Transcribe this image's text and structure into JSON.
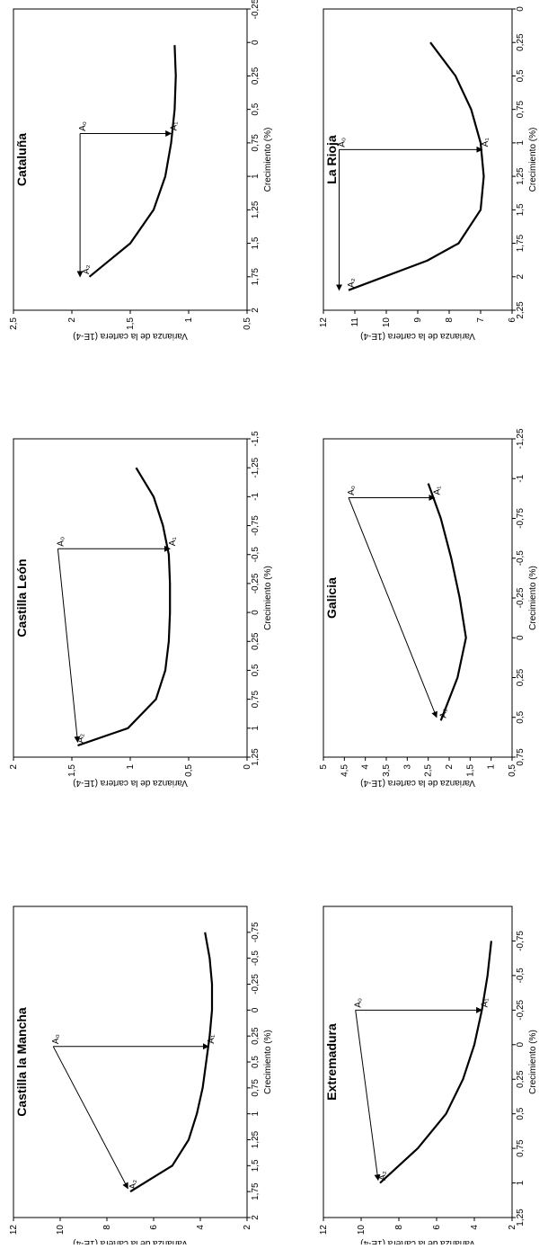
{
  "chart_data": [
    {
      "type": "line",
      "title": "Cataluña",
      "xlabel": "Crecimiento (%)",
      "ylabel": "Varianza de la cartera (1E-4)",
      "xlim": [
        -0.25,
        2
      ],
      "ylim": [
        0.5,
        2.5
      ],
      "xticks": [
        -0.25,
        0,
        0.25,
        0.5,
        0.75,
        1,
        1.25,
        1.5,
        1.75,
        2
      ],
      "xtick_labels": [
        "-0,25",
        "0",
        "0,25",
        "0,5",
        "0,75",
        "1",
        "1,25",
        "1,5",
        "1,75",
        "2"
      ],
      "yticks": [
        0.5,
        1,
        1.5,
        2,
        2.5
      ],
      "ytick_labels": [
        "0,5",
        "1",
        "1,5",
        "2",
        "2,5"
      ],
      "grid": false,
      "series": [
        {
          "x": [
            0.02,
            0.25,
            0.5,
            0.75,
            1.0,
            1.25,
            1.5,
            1.75
          ],
          "y": [
            1.12,
            1.11,
            1.12,
            1.15,
            1.2,
            1.3,
            1.5,
            1.85
          ]
        }
      ],
      "annotations": [
        {
          "label": "A₀",
          "x": 0.68,
          "y": 1.93
        },
        {
          "label": "A₁",
          "x": 0.68,
          "y": 1.15
        },
        {
          "label": "A₂",
          "x": 1.75,
          "y": 1.9
        }
      ],
      "arrows": [
        {
          "from": [
            0.68,
            1.93
          ],
          "to": [
            0.68,
            1.15
          ]
        },
        {
          "from": [
            0.68,
            1.93
          ],
          "to": [
            1.75,
            1.93
          ]
        }
      ]
    },
    {
      "type": "line",
      "title": "Castilla León",
      "xlabel": "Crecimiento (%)",
      "ylabel": "Varianza de la cartera (1E-4)",
      "xlim": [
        -1.5,
        1.25
      ],
      "ylim": [
        0,
        2
      ],
      "xticks": [
        -1.5,
        -1.25,
        -1,
        -0.75,
        -0.5,
        -0.25,
        0,
        0.25,
        0.5,
        0.75,
        1,
        1.25
      ],
      "xtick_labels": [
        "-1,5",
        "-1,25",
        "-1",
        "-0,75",
        "-0,5",
        "-0,25",
        "0",
        "0,25",
        "0,5",
        "0,75",
        "1",
        "1,25"
      ],
      "yticks": [
        0,
        0.5,
        1,
        1.5,
        2
      ],
      "ytick_labels": [
        "0",
        "0,5",
        "1",
        "1,5",
        "2"
      ],
      "grid": false,
      "series": [
        {
          "x": [
            -1.25,
            -1.0,
            -0.75,
            -0.5,
            -0.25,
            0,
            0.25,
            0.5,
            0.75,
            1.0,
            1.15
          ],
          "y": [
            0.95,
            0.8,
            0.72,
            0.67,
            0.66,
            0.66,
            0.67,
            0.7,
            0.78,
            1.02,
            1.45
          ]
        }
      ],
      "annotations": [
        {
          "label": "A₀",
          "x": -0.55,
          "y": 1.62
        },
        {
          "label": "A₁",
          "x": -0.55,
          "y": 0.66
        },
        {
          "label": "A₂",
          "x": 1.15,
          "y": 1.45
        }
      ],
      "arrows": [
        {
          "from": [
            -0.55,
            1.62
          ],
          "to": [
            -0.55,
            0.66
          ]
        },
        {
          "from": [
            -0.55,
            1.62
          ],
          "to": [
            1.12,
            1.45
          ]
        }
      ]
    },
    {
      "type": "line",
      "title": "Castilla la Mancha",
      "xlabel": "Crecimiento (%)",
      "ylabel": "Varianza de la cartera (1E-4)",
      "xlim": [
        -1.0,
        2.0
      ],
      "ylim": [
        2,
        12
      ],
      "xticks": [
        -0.75,
        -0.5,
        -0.25,
        0,
        0.25,
        0.5,
        0.75,
        1,
        1.25,
        1.5,
        1.75,
        2
      ],
      "xtick_labels": [
        "-0,75",
        "-0,5",
        "-0,25",
        "0",
        "0,25",
        "0,5",
        "0,75",
        "1",
        "1,25",
        "1,5",
        "1,75",
        "2"
      ],
      "yticks": [
        2,
        4,
        6,
        8,
        10,
        12
      ],
      "ytick_labels": [
        "2",
        "4",
        "6",
        "8",
        "10",
        "12"
      ],
      "grid": false,
      "series": [
        {
          "x": [
            -0.75,
            -0.5,
            -0.25,
            0,
            0.25,
            0.5,
            0.75,
            1.0,
            1.25,
            1.5,
            1.75
          ],
          "y": [
            3.8,
            3.6,
            3.5,
            3.5,
            3.6,
            3.75,
            3.9,
            4.15,
            4.5,
            5.2,
            7.0
          ]
        }
      ],
      "annotations": [
        {
          "label": "A₀",
          "x": 0.35,
          "y": 10.3
        },
        {
          "label": "A₁",
          "x": 0.35,
          "y": 3.65
        },
        {
          "label": "A₂",
          "x": 1.75,
          "y": 7.0
        }
      ],
      "arrows": [
        {
          "from": [
            0.35,
            10.3
          ],
          "to": [
            0.35,
            3.65
          ]
        },
        {
          "from": [
            0.35,
            10.3
          ],
          "to": [
            1.72,
            7.1
          ]
        }
      ]
    },
    {
      "type": "line",
      "title": "La Rioja",
      "xlabel": "Crecimiento (%)",
      "ylabel": "Varianza de la cartera (1E-4)",
      "xlim": [
        0,
        2.25
      ],
      "ylim": [
        6,
        12
      ],
      "xticks": [
        0,
        0.25,
        0.5,
        0.75,
        1,
        1.25,
        1.5,
        1.75,
        2,
        2.25
      ],
      "xtick_labels": [
        "0",
        "0,25",
        "0,5",
        "0,75",
        "1",
        "1,25",
        "1,5",
        "1,75",
        "2",
        "2,25"
      ],
      "yticks": [
        6,
        7,
        8,
        9,
        10,
        11,
        12
      ],
      "ytick_labels": [
        "6",
        "7",
        "8",
        "9",
        "10",
        "11",
        "12"
      ],
      "grid": false,
      "series": [
        {
          "x": [
            0.25,
            0.5,
            0.75,
            1.0,
            1.25,
            1.5,
            1.75,
            1.88,
            2.1
          ],
          "y": [
            8.6,
            7.8,
            7.3,
            7.0,
            6.9,
            7.0,
            7.7,
            8.7,
            11.2
          ]
        }
      ],
      "annotations": [
        {
          "label": "A₀",
          "x": 1.05,
          "y": 11.5
        },
        {
          "label": "A₁",
          "x": 1.05,
          "y": 6.95
        },
        {
          "label": "A₂",
          "x": 2.1,
          "y": 11.2
        }
      ],
      "arrows": [
        {
          "from": [
            1.05,
            11.5
          ],
          "to": [
            1.05,
            6.95
          ]
        },
        {
          "from": [
            1.05,
            11.5
          ],
          "to": [
            2.1,
            11.5
          ]
        }
      ]
    },
    {
      "type": "line",
      "title": "Galicia",
      "xlabel": "Crecimiento (%)",
      "ylabel": "Varianza de la cartera (1E-4)",
      "xlim": [
        -1.25,
        0.75
      ],
      "ylim": [
        0.5,
        5
      ],
      "xticks": [
        -1.25,
        -1,
        -0.75,
        -0.5,
        -0.25,
        0,
        0.25,
        0.5,
        0.75
      ],
      "xtick_labels": [
        "-1,25",
        "-1",
        "-0,75",
        "-0,5",
        "-0,25",
        "0",
        "0,25",
        "0,5",
        "0,75"
      ],
      "yticks": [
        0.5,
        1,
        1.5,
        2,
        2.5,
        3,
        3.5,
        4,
        4.5,
        5
      ],
      "ytick_labels": [
        "0,5",
        "1",
        "1,5",
        "2",
        "2,5",
        "3",
        "3,5",
        "4",
        "4,5",
        "5"
      ],
      "grid": false,
      "series": [
        {
          "x": [
            -0.97,
            -0.75,
            -0.5,
            -0.25,
            0,
            0.25,
            0.52
          ],
          "y": [
            2.5,
            2.2,
            1.95,
            1.75,
            1.6,
            1.8,
            2.2
          ]
        }
      ],
      "annotations": [
        {
          "label": "A₀",
          "x": -0.88,
          "y": 4.4
        },
        {
          "label": "A₁",
          "x": -0.88,
          "y": 2.35
        },
        {
          "label": "A₂",
          "x": 0.52,
          "y": 2.2
        }
      ],
      "arrows": [
        {
          "from": [
            -0.88,
            4.4
          ],
          "to": [
            -0.88,
            2.35
          ]
        },
        {
          "from": [
            -0.88,
            4.4
          ],
          "to": [
            0.5,
            2.3
          ]
        }
      ]
    },
    {
      "type": "line",
      "title": "Extremadura",
      "xlabel": "Crecimiento (%)",
      "ylabel": "Varianza de la cartera (1E-4)",
      "xlim": [
        -1.0,
        1.25
      ],
      "ylim": [
        2,
        12
      ],
      "xticks": [
        -0.75,
        -0.5,
        -0.25,
        0,
        0.25,
        0.5,
        0.75,
        1,
        1.25
      ],
      "xtick_labels": [
        "-0,75",
        "-0,5",
        "-0,25",
        "0",
        "0,25",
        "0,5",
        "0,75",
        "1",
        "1,25"
      ],
      "yticks": [
        2,
        4,
        6,
        8,
        10,
        12
      ],
      "ytick_labels": [
        "2",
        "4",
        "6",
        "8",
        "10",
        "12"
      ],
      "grid": false,
      "series": [
        {
          "x": [
            -0.75,
            -0.5,
            -0.25,
            0,
            0.25,
            0.5,
            0.75,
            1.0
          ],
          "y": [
            3.1,
            3.3,
            3.6,
            4.0,
            4.6,
            5.5,
            7.0,
            9.0
          ]
        }
      ],
      "annotations": [
        {
          "label": "A₀",
          "x": -0.25,
          "y": 10.3
        },
        {
          "label": "A₁",
          "x": -0.25,
          "y": 3.6
        },
        {
          "label": "A₂",
          "x": 1.0,
          "y": 9.0
        }
      ],
      "arrows": [
        {
          "from": [
            -0.25,
            10.3
          ],
          "to": [
            -0.25,
            3.6
          ]
        },
        {
          "from": [
            -0.25,
            10.3
          ],
          "to": [
            0.98,
            9.1
          ]
        }
      ]
    }
  ]
}
